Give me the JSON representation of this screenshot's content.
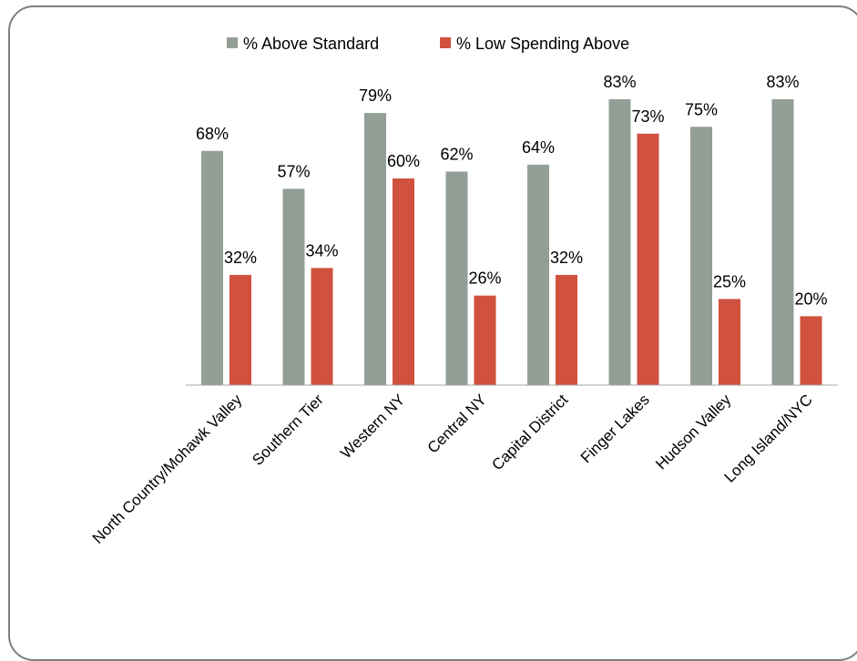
{
  "chart_data": {
    "type": "bar",
    "categories": [
      "North Country/Mohawk Valley",
      "Southern Tier",
      "Western NY",
      "Central NY",
      "Capital District",
      "Finger Lakes",
      "Hudson Valley",
      "Long Island/NYC"
    ],
    "series": [
      {
        "name": "% Above Standard",
        "values": [
          68,
          57,
          79,
          62,
          64,
          83,
          75,
          83
        ],
        "labels": [
          "68%",
          "57%",
          "79%",
          "62%",
          "64%",
          "83%",
          "75%",
          "83%"
        ],
        "color": "#939f96"
      },
      {
        "name": "% Low Spending Above",
        "values": [
          32,
          34,
          60,
          26,
          32,
          73,
          25,
          20
        ],
        "labels": [
          "32%",
          "34%",
          "60%",
          "26%",
          "32%",
          "73%",
          "25%",
          "20%"
        ],
        "color": "#d0513d"
      }
    ],
    "ylim": [
      0,
      100
    ],
    "grid": false,
    "legend_position": "top",
    "xlabel": "",
    "ylabel": "",
    "title": ""
  }
}
